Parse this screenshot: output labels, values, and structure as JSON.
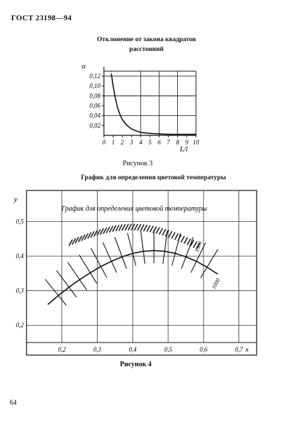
{
  "header": {
    "standard": "ГОСТ 23198—94"
  },
  "figure3": {
    "title_line1": "Отклонение от закона квадратов",
    "title_line2": "расстояний",
    "y_symbol": "α",
    "y_ticks": [
      "0,12",
      "0,10",
      "0,08",
      "0,06",
      "0,04",
      "0,02"
    ],
    "x_ticks": [
      "0",
      "1",
      "2",
      "3",
      "4",
      "5",
      "6",
      "7",
      "8",
      "9",
      "10"
    ],
    "x_label": "L/l",
    "caption": "Рисунок 3"
  },
  "figure4": {
    "title": "График для определения цветовой температуры",
    "inner_title": "График для определения цветовой температуры",
    "y_label": "y",
    "y_ticks": [
      "0,5",
      "0,4",
      "0,3",
      "0,2"
    ],
    "x_ticks": [
      "0,2",
      "0,3",
      "0,4",
      "0,5",
      "0,6",
      "0,7"
    ],
    "x_label": "x",
    "isotherm_labels": [
      "1000",
      "1300"
    ],
    "caption": "Рисунок 4"
  },
  "footer": {
    "page_number": "64"
  },
  "chart_data": [
    {
      "type": "line",
      "title": "Отклонение от закона квадратов расстояний",
      "ylabel": "α",
      "xlabel": "L/l",
      "xlim": [
        0,
        10
      ],
      "ylim": [
        0,
        0.13
      ],
      "grid": true,
      "x": [
        0.8,
        1.0,
        1.25,
        1.5,
        1.75,
        2.0,
        2.5,
        3.0,
        3.5,
        4.0,
        5.0,
        6.0,
        7.0,
        8.0,
        9.0,
        10.0
      ],
      "y": [
        0.125,
        0.1,
        0.075,
        0.055,
        0.042,
        0.032,
        0.02,
        0.013,
        0.009,
        0.006,
        0.004,
        0.003,
        0.002,
        0.002,
        0.002,
        0.002
      ]
    },
    {
      "type": "line",
      "title": "График для определения цветовой температуры",
      "xlabel": "x",
      "ylabel": "y",
      "xlim": [
        0.1,
        0.75
      ],
      "ylim": [
        0.15,
        0.59
      ],
      "grid": true,
      "series": [
        {
          "x": [
            0.16,
            0.19,
            0.22,
            0.25,
            0.28,
            0.31,
            0.34,
            0.37,
            0.4,
            0.43,
            0.46,
            0.49,
            0.52,
            0.55,
            0.58,
            0.61,
            0.64
          ],
          "y": [
            0.26,
            0.286,
            0.31,
            0.332,
            0.352,
            0.37,
            0.385,
            0.398,
            0.408,
            0.414,
            0.416,
            0.414,
            0.408,
            0.398,
            0.385,
            0.368,
            0.348
          ]
        }
      ]
    }
  ]
}
